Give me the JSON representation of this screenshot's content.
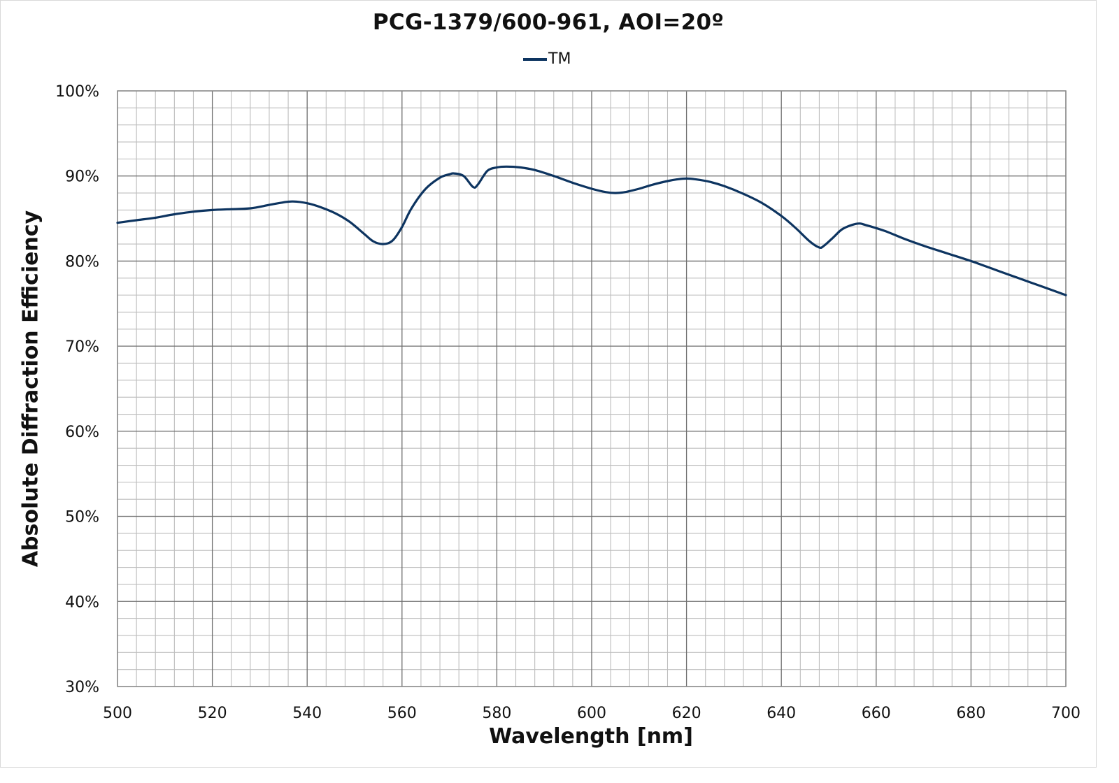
{
  "chart_data": {
    "type": "line",
    "title": "PCG-1379/600-961, AOI=20º",
    "xlabel": "Wavelength [nm]",
    "ylabel": "Absolute Diffraction Efficiency",
    "xlim": [
      500,
      700
    ],
    "ylim": [
      30,
      100
    ],
    "x_ticks": [
      500,
      520,
      540,
      560,
      580,
      600,
      620,
      640,
      660,
      680,
      700
    ],
    "y_ticks": [
      30,
      40,
      50,
      60,
      70,
      80,
      90,
      100
    ],
    "y_tick_labels": [
      "30%",
      "40%",
      "50%",
      "60%",
      "70%",
      "80%",
      "90%",
      "100%"
    ],
    "x_minor_step": 4,
    "y_minor_step": 2,
    "grid": true,
    "legend_position": "top-center",
    "series": [
      {
        "name": "TM",
        "color": "#0d3460",
        "x": [
          500,
          504,
          508,
          512,
          516,
          520,
          524,
          528,
          532,
          535,
          537,
          540,
          543,
          546,
          549,
          552,
          554,
          556,
          558,
          560,
          562,
          565,
          568,
          570,
          571,
          573,
          575,
          576,
          578,
          580,
          582,
          585,
          588,
          592,
          596,
          600,
          603,
          605,
          607,
          610,
          613,
          616,
          618,
          620,
          622,
          625,
          628,
          632,
          636,
          640,
          643,
          646,
          648,
          649,
          651,
          653,
          656,
          658,
          662,
          666,
          670,
          675,
          680,
          685,
          690,
          695,
          700
        ],
        "y": [
          84.5,
          84.8,
          85.1,
          85.5,
          85.8,
          86.0,
          86.1,
          86.2,
          86.6,
          86.9,
          87.0,
          86.8,
          86.3,
          85.6,
          84.6,
          83.2,
          82.3,
          82.0,
          82.4,
          84.0,
          86.2,
          88.5,
          89.8,
          90.2,
          90.3,
          90.0,
          88.7,
          89.0,
          90.6,
          91.0,
          91.1,
          91.0,
          90.7,
          90.0,
          89.2,
          88.5,
          88.1,
          88.0,
          88.1,
          88.5,
          89.0,
          89.4,
          89.6,
          89.7,
          89.6,
          89.3,
          88.8,
          87.9,
          86.8,
          85.3,
          83.9,
          82.3,
          81.6,
          81.8,
          82.8,
          83.8,
          84.4,
          84.2,
          83.5,
          82.6,
          81.8,
          80.9,
          80.0,
          79.0,
          78.0,
          77.0,
          76.0
        ]
      }
    ]
  },
  "header": {
    "title": "PCG-1379/600-961, AOI=20º"
  },
  "legend": {
    "items": [
      {
        "label": "TM",
        "color": "#0d3460"
      }
    ]
  },
  "axes": {
    "x_title": "Wavelength [nm]",
    "y_title": "Absolute Diffraction Efficiency"
  }
}
